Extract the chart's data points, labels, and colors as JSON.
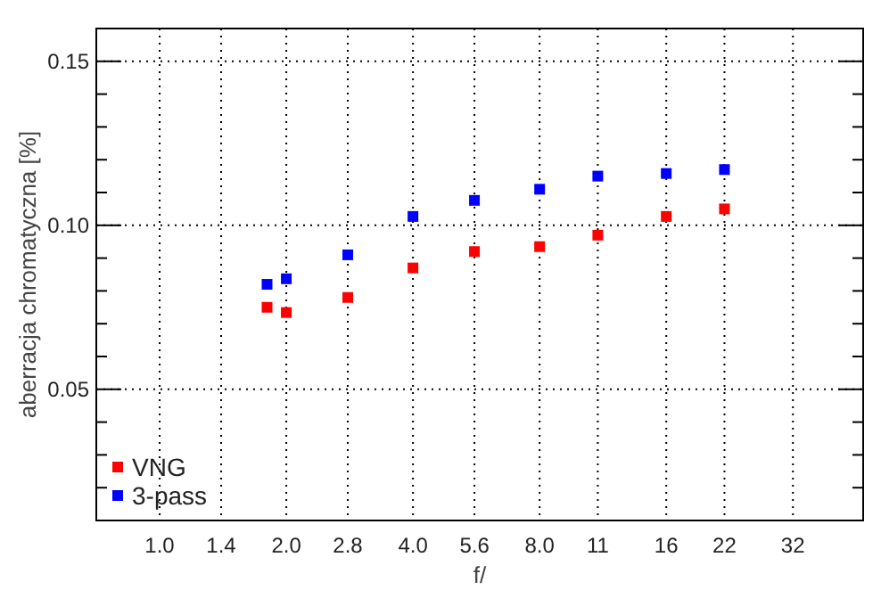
{
  "chart_data": {
    "type": "scatter",
    "xlabel": "f/",
    "ylabel": "aberracja chromatyczna [%]",
    "log": "x",
    "grid": true,
    "legend": "bottom left",
    "marker": "square",
    "xlim": [
      0.707,
      47
    ],
    "xticks": [
      {
        "value": 1,
        "label": "1.0"
      },
      1.4,
      {
        "value": 2,
        "label": "2.0"
      },
      2.8,
      {
        "value": 4,
        "label": "4.0"
      },
      5.6,
      {
        "value": 8,
        "label": "8.0"
      },
      11,
      16,
      22,
      32
    ],
    "ylim": [
      0.01,
      0.16
    ],
    "yticks": [
      {
        "value": 0.02,
        "label": null
      },
      {
        "value": 0.03,
        "label": null
      },
      {
        "value": 0.04,
        "label": null
      },
      0.05,
      {
        "value": 0.06,
        "label": null
      },
      {
        "value": 0.07,
        "label": null
      },
      {
        "value": 0.08,
        "label": null
      },
      {
        "value": 0.09,
        "label": null
      },
      {
        "value": 0.1,
        "label": "0.10"
      },
      {
        "value": 0.11,
        "label": null
      },
      {
        "value": 0.12,
        "label": null
      },
      {
        "value": 0.13,
        "label": null
      },
      {
        "value": 0.14,
        "label": null
      },
      0.15
    ],
    "x": [
      1.8,
      2,
      2.8,
      4,
      5.6,
      8,
      11,
      16,
      22
    ],
    "series": [
      {
        "name": "VNG",
        "color": "#ff0000",
        "values": [
          0.075,
          0.0734,
          0.078,
          0.087,
          0.092,
          0.0935,
          0.097,
          0.1027,
          0.105
        ]
      },
      {
        "name": "3-pass",
        "color": "#0000ff",
        "values": [
          0.082,
          0.0837,
          0.091,
          0.1027,
          0.1076,
          0.111,
          0.115,
          0.1158,
          0.117
        ]
      }
    ]
  }
}
